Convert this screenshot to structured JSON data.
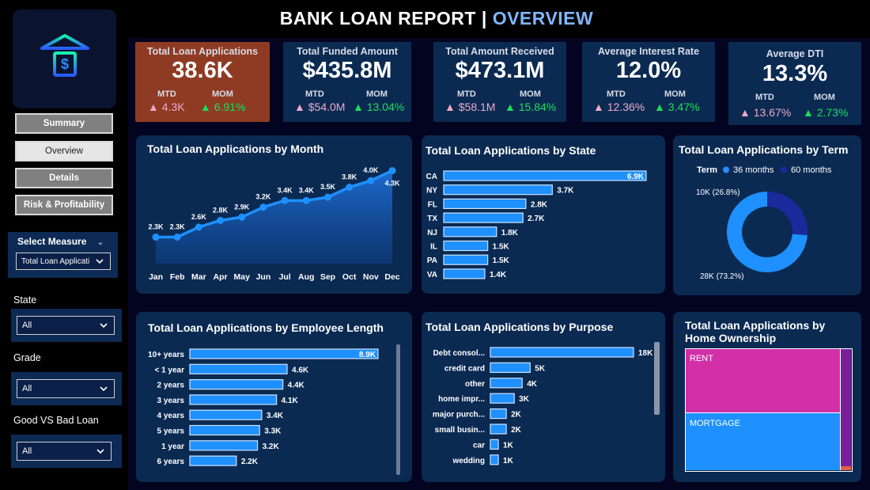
{
  "header": {
    "title_main": "BANK LOAN REPORT |",
    "title_sub": "OVERVIEW"
  },
  "nav": {
    "items": [
      {
        "label": "Summary"
      },
      {
        "label": "Overview"
      },
      {
        "label": "Details"
      },
      {
        "label": "Risk & Profitability"
      }
    ],
    "active": "Overview"
  },
  "filters": {
    "measure_title": "Select Measure",
    "measure_value": "Total Loan Applicati",
    "state_label": "State",
    "state_value": "All",
    "grade_label": "Grade",
    "grade_value": "All",
    "loan_label": "Good VS Bad Loan",
    "loan_value": "All"
  },
  "kpis": [
    {
      "label": "Total Loan Applications",
      "value": "38.6K",
      "mtd_label": "MTD",
      "mtd": "4.3K",
      "mom_label": "MOM",
      "mom": "6.91%"
    },
    {
      "label": "Total Funded Amount",
      "value": "$435.8M",
      "mtd_label": "MTD",
      "mtd": "$54.0M",
      "mom_label": "MOM",
      "mom": "13.04%"
    },
    {
      "label": "Total Amount Received",
      "value": "$473.1M",
      "mtd_label": "MTD",
      "mtd": "$58.1M",
      "mom_label": "MOM",
      "mom": "15.84%"
    },
    {
      "label": "Average Interest Rate",
      "value": "12.0%",
      "mtd_label": "MTD",
      "mtd": "12.36%",
      "mom_label": "MOM",
      "mom": "3.47%"
    },
    {
      "label": "Average DTI",
      "value": "13.3%",
      "mtd_label": "MTD",
      "mtd": "13.67%",
      "mom_label": "MOM",
      "mom": "2.73%"
    }
  ],
  "colors": {
    "accent": "#1e90ff",
    "card": "#0b2a52",
    "highlight": "#8f3b24",
    "up": "#18e05a",
    "mtd_arrow": "#f0a8c8",
    "rent": "#d22fa8",
    "mortgage": "#1e90ff",
    "own": "#7a1f9a"
  },
  "chart_data": [
    {
      "id": "by_month",
      "type": "area",
      "title": "Total Loan Applications by Month",
      "categories": [
        "Jan",
        "Feb",
        "Mar",
        "Apr",
        "May",
        "Jun",
        "Jul",
        "Aug",
        "Sep",
        "Oct",
        "Nov",
        "Dec"
      ],
      "values": [
        2.3,
        2.3,
        2.6,
        2.8,
        2.9,
        3.2,
        3.4,
        3.4,
        3.5,
        3.8,
        4.0,
        4.3
      ],
      "labels": [
        "2.3K",
        "2.3K",
        "2.6K",
        "2.8K",
        "2.9K",
        "3.2K",
        "3.4K",
        "3.4K",
        "3.5K",
        "3.8K",
        "4.0K",
        "4.3K"
      ],
      "unit": "K"
    },
    {
      "id": "by_state",
      "type": "bar",
      "title": "Total Loan Applications by State",
      "categories": [
        "CA",
        "NY",
        "FL",
        "TX",
        "NJ",
        "IL",
        "PA",
        "VA"
      ],
      "values": [
        6.9,
        3.7,
        2.8,
        2.7,
        1.8,
        1.5,
        1.5,
        1.4
      ],
      "labels": [
        "6.9K",
        "3.7K",
        "2.8K",
        "2.7K",
        "1.8K",
        "1.5K",
        "1.5K",
        "1.4K"
      ]
    },
    {
      "id": "by_term",
      "type": "pie",
      "title": "Total Loan Applications by Term",
      "legend_title": "Term",
      "categories": [
        "36 months",
        "60 months"
      ],
      "values": [
        28,
        10
      ],
      "labels": [
        "28K (73.2%)",
        "10K (26.8%)"
      ],
      "colors": [
        "#1e90ff",
        "#1a2a9a"
      ]
    },
    {
      "id": "by_emp_length",
      "type": "bar",
      "title": "Total Loan Applications by Employee Length",
      "categories": [
        "10+ years",
        "< 1 year",
        "2 years",
        "3 years",
        "4 years",
        "5 years",
        "1 year",
        "6 years"
      ],
      "values": [
        8.9,
        4.6,
        4.4,
        4.1,
        3.4,
        3.3,
        3.2,
        2.2
      ],
      "labels": [
        "8.9K",
        "4.6K",
        "4.4K",
        "4.1K",
        "3.4K",
        "3.3K",
        "3.2K",
        "2.2K"
      ]
    },
    {
      "id": "by_purpose",
      "type": "bar",
      "title": "Total Loan Applications by Purpose",
      "categories": [
        "Debt consol...",
        "credit card",
        "other",
        "home impr...",
        "major purch...",
        "small busin...",
        "car",
        "wedding"
      ],
      "values": [
        18,
        5,
        4,
        3,
        2,
        2,
        1,
        1
      ],
      "labels": [
        "18K",
        "5K",
        "4K",
        "3K",
        "2K",
        "2K",
        "1K",
        "1K"
      ]
    },
    {
      "id": "by_home",
      "type": "heatmap",
      "title": "Total Loan Applications by Home Ownership",
      "categories": [
        "RENT",
        "MORTGAGE"
      ]
    }
  ]
}
